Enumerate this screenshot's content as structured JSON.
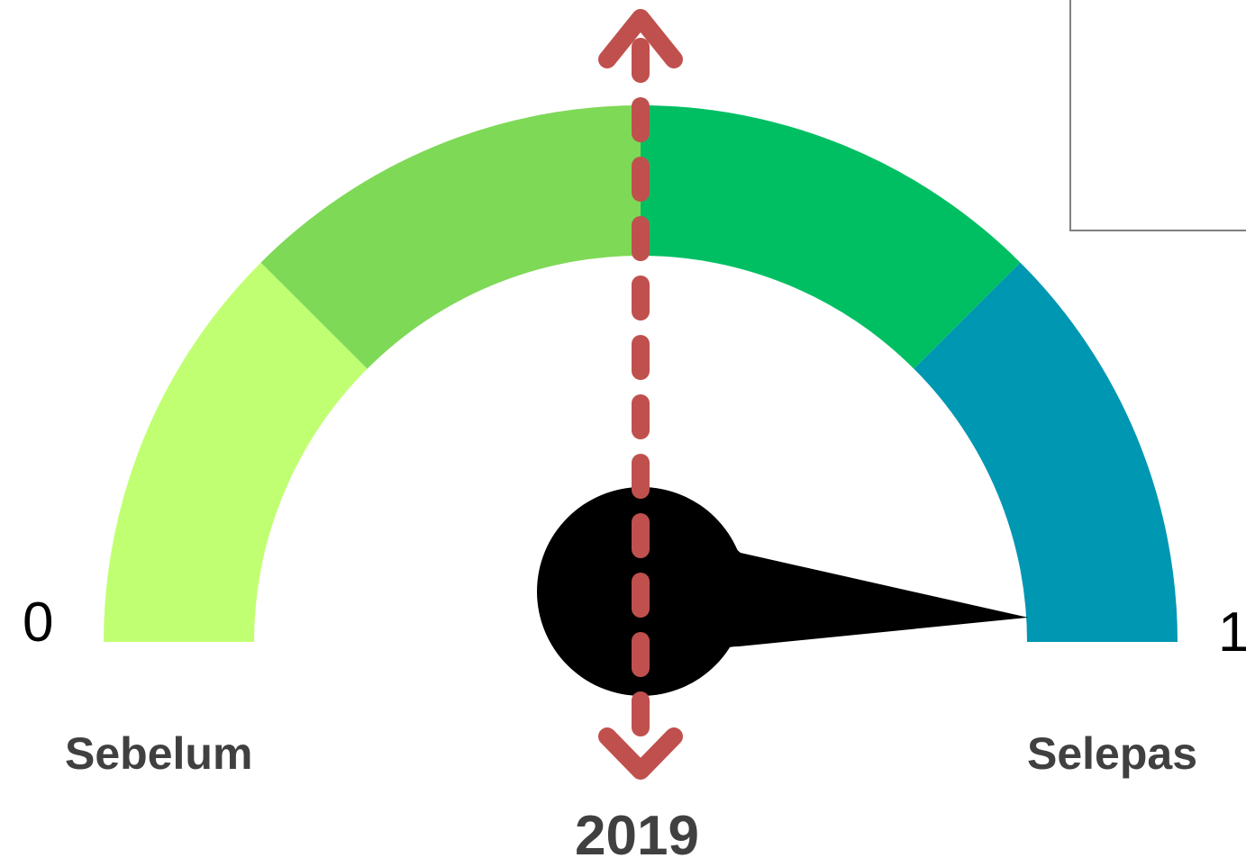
{
  "gauge": {
    "min_label": "0",
    "max_label": "1",
    "left_caption": "Sebelum",
    "right_caption": "Selepas",
    "year_label": "2019",
    "needle_value": 0.98,
    "segments": [
      {
        "from": 0.0,
        "to": 0.25,
        "color": "#c1ff72"
      },
      {
        "from": 0.25,
        "to": 0.5,
        "color": "#7ed957"
      },
      {
        "from": 0.5,
        "to": 0.75,
        "color": "#00bf63"
      },
      {
        "from": 0.75,
        "to": 1.0,
        "color": "#0097b2"
      }
    ],
    "needle_color": "#000000",
    "marker_line_color": "#c0504d",
    "text_color": "#404040"
  }
}
